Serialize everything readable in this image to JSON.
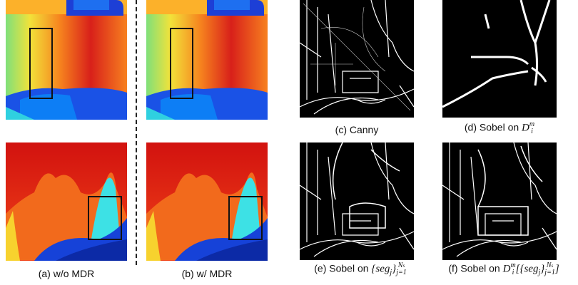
{
  "panels": [
    {
      "caption": [
        {
          "text": "(a) w/o MDR"
        }
      ]
    },
    {
      "caption": [
        {
          "text": "(b) w/ MDR"
        }
      ]
    },
    {
      "caption": [
        {
          "text": "(c) Canny"
        }
      ]
    },
    {
      "caption": [
        {
          "text": "(d) Sobel on "
        },
        {
          "text": "D",
          "sub": "i",
          "sup": "m"
        }
      ]
    },
    {
      "caption": [
        {
          "text": "(e) Sobel on "
        },
        {
          "text": "{seg",
          "sub": "j"
        },
        {
          "text": "}",
          "sub": "j=1",
          "sup": "N",
          "supsub": "s"
        }
      ]
    },
    {
      "caption": [
        {
          "text": "(f) Sobel on "
        },
        {
          "text": "D",
          "sub": "i",
          "sup": "m"
        },
        {
          "text": "[{seg",
          "sub": "j"
        },
        {
          "text": "}",
          "sub": "j=1",
          "sup": "N",
          "supsub": "s"
        },
        {
          "text": "]"
        }
      ]
    }
  ]
}
